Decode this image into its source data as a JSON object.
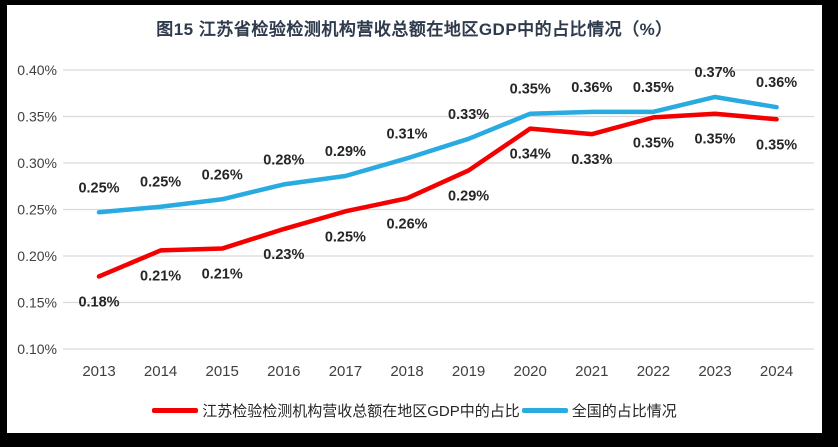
{
  "title": "图15  江苏省检验检测机构营收总额在地区GDP中的占比情况（%）",
  "colors": {
    "frame": "#000000",
    "background": "#ffffff",
    "grid": "#d9d9d9",
    "axis_text": "#404040",
    "data_label": "#262626",
    "title_text": "#2f3b4c",
    "jiangsu_red": "#f40000",
    "national_blue": "#29abe2"
  },
  "chart_data": {
    "type": "line",
    "title": "图15  江苏省检验检测机构营收总额在地区GDP中的占比情况（%）",
    "categories": [
      "2013",
      "2014",
      "2015",
      "2016",
      "2017",
      "2018",
      "2019",
      "2020",
      "2021",
      "2022",
      "2023",
      "2024"
    ],
    "xlabel": "",
    "ylabel": "",
    "ylim": [
      0.1,
      0.4
    ],
    "ytick_values": [
      0.4,
      0.35,
      0.3,
      0.25,
      0.2,
      0.15,
      0.1
    ],
    "ytick_labels": [
      "0.40%",
      "0.35%",
      "0.30%",
      "0.25%",
      "0.20%",
      "0.15%",
      "0.10%"
    ],
    "grid": true,
    "legend_position": "bottom",
    "series": [
      {
        "name": "江苏检验检测机构营收总额在地区GDP中的占比",
        "color": "#f40000",
        "label_side": "below",
        "values": [
          0.18,
          0.21,
          0.21,
          0.23,
          0.25,
          0.26,
          0.29,
          0.34,
          0.33,
          0.35,
          0.35,
          0.35
        ],
        "labels": [
          "0.18%",
          "0.21%",
          "0.21%",
          "0.23%",
          "0.25%",
          "0.26%",
          "0.29%",
          "0.34%",
          "0.33%",
          "0.35%",
          "0.35%",
          "0.35%"
        ],
        "plot_values": [
          0.178,
          0.206,
          0.208,
          0.229,
          0.248,
          0.262,
          0.292,
          0.337,
          0.331,
          0.349,
          0.353,
          0.347
        ]
      },
      {
        "name": "全国的占比情况",
        "color": "#29abe2",
        "label_side": "above",
        "values": [
          0.25,
          0.25,
          0.26,
          0.28,
          0.29,
          0.31,
          0.33,
          0.35,
          0.36,
          0.35,
          0.37,
          0.36
        ],
        "labels": [
          "0.25%",
          "0.25%",
          "0.26%",
          "0.28%",
          "0.29%",
          "0.31%",
          "0.33%",
          "0.35%",
          "0.36%",
          "0.35%",
          "0.37%",
          "0.36%"
        ],
        "plot_values": [
          0.247,
          0.253,
          0.261,
          0.277,
          0.286,
          0.305,
          0.326,
          0.353,
          0.355,
          0.355,
          0.371,
          0.36
        ]
      }
    ]
  }
}
